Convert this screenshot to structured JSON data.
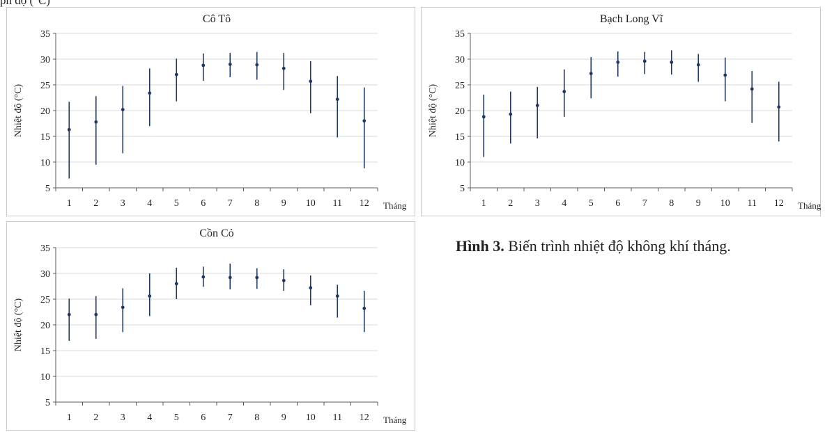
{
  "top_text": "ph          độ (°C)",
  "caption": {
    "label": "Hình 3.",
    "text": " Biến trình nhiệt độ không khí tháng."
  },
  "colors": {
    "series": "#1f3864",
    "grid": "#d9d9d9",
    "axis": "#595959"
  },
  "chart_data": [
    {
      "type": "scatter",
      "title": "Cô Tô",
      "xlabel": "Tháng",
      "ylabel": "Nhiệt độ (°C)",
      "x": [
        1,
        2,
        3,
        4,
        5,
        6,
        7,
        8,
        9,
        10,
        11,
        12
      ],
      "ylim": [
        5,
        35
      ],
      "yticks": [
        5,
        10,
        15,
        20,
        25,
        30,
        35
      ],
      "grid": true,
      "mean": [
        16.3,
        17.8,
        20.2,
        23.4,
        27.0,
        28.8,
        29.0,
        28.9,
        28.2,
        25.7,
        22.2,
        18.0
      ],
      "min": [
        6.8,
        9.5,
        11.7,
        17.0,
        21.8,
        25.8,
        26.5,
        26.0,
        24.0,
        19.5,
        14.8,
        8.8
      ],
      "max": [
        21.7,
        22.8,
        24.8,
        28.2,
        30.1,
        31.1,
        31.2,
        31.4,
        31.2,
        29.6,
        26.7,
        24.5
      ]
    },
    {
      "type": "scatter",
      "title": "Bạch Long Vĩ",
      "xlabel": "Tháng",
      "ylabel": "Nhiệt độ (°C)",
      "x": [
        1,
        2,
        3,
        4,
        5,
        6,
        7,
        8,
        9,
        10,
        11,
        12
      ],
      "ylim": [
        5,
        35
      ],
      "yticks": [
        5,
        10,
        15,
        20,
        25,
        30,
        35
      ],
      "grid": true,
      "mean": [
        18.8,
        19.3,
        21.0,
        23.7,
        27.2,
        29.4,
        29.6,
        29.4,
        28.9,
        26.9,
        24.2,
        20.7
      ],
      "min": [
        11.0,
        13.6,
        14.6,
        18.8,
        22.4,
        26.6,
        27.1,
        27.0,
        25.6,
        21.8,
        17.6,
        14.0
      ],
      "max": [
        23.1,
        23.7,
        24.6,
        28.0,
        30.4,
        31.5,
        31.4,
        31.7,
        31.0,
        30.3,
        27.7,
        25.6
      ]
    },
    {
      "type": "scatter",
      "title": "Cồn Cỏ",
      "xlabel": "Tháng",
      "ylabel": "Nhiệt độ (°C)",
      "x": [
        1,
        2,
        3,
        4,
        5,
        6,
        7,
        8,
        9,
        10,
        11,
        12
      ],
      "ylim": [
        5,
        35
      ],
      "yticks": [
        5,
        10,
        15,
        20,
        25,
        30,
        35
      ],
      "grid": true,
      "mean": [
        22.0,
        22.0,
        23.4,
        25.6,
        28.0,
        29.3,
        29.2,
        29.2,
        28.6,
        27.2,
        25.6,
        23.2
      ],
      "min": [
        16.9,
        17.3,
        18.6,
        21.7,
        25.0,
        27.4,
        26.9,
        27.0,
        26.6,
        23.8,
        21.4,
        18.6
      ],
      "max": [
        25.1,
        25.6,
        27.1,
        30.0,
        31.1,
        31.3,
        31.9,
        31.0,
        30.8,
        29.6,
        27.8,
        26.6
      ]
    }
  ]
}
